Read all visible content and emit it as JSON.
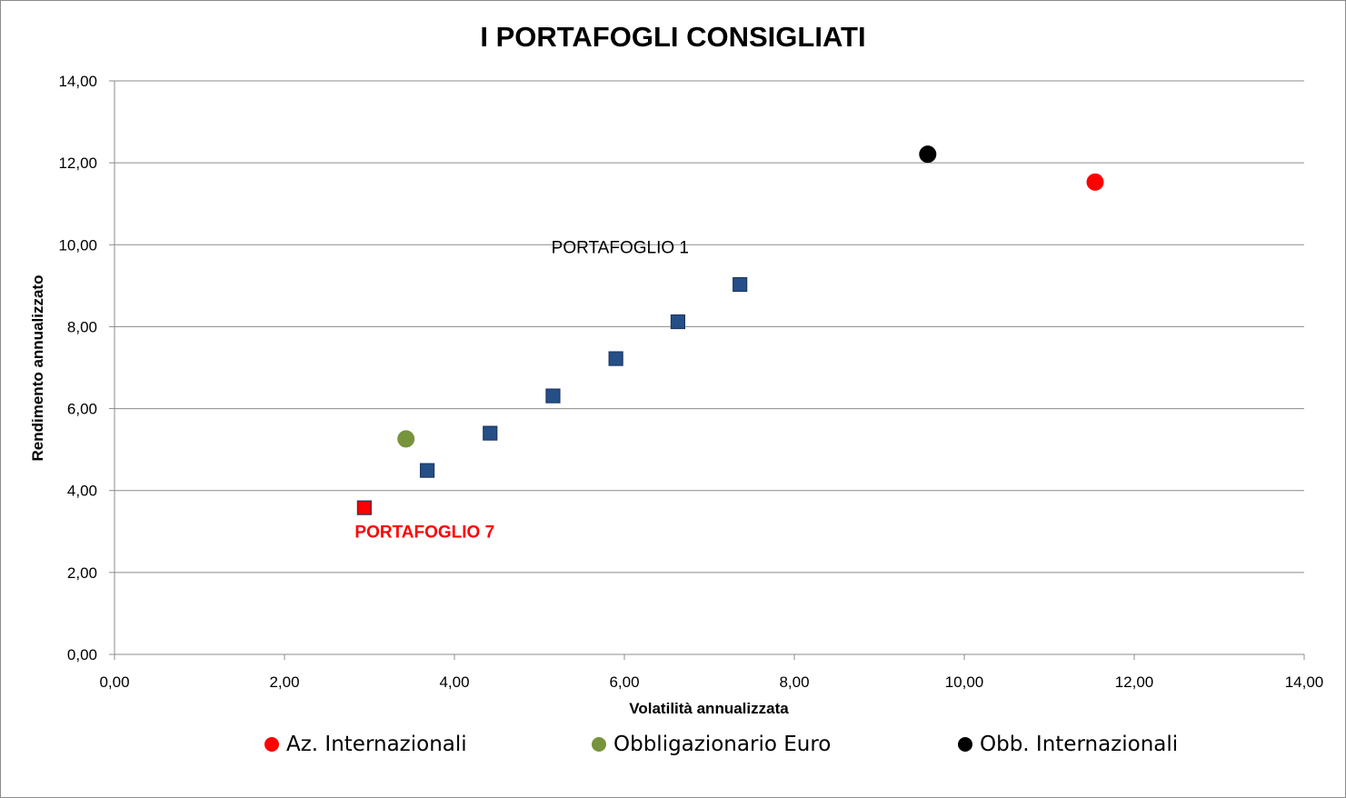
{
  "chart_data": {
    "type": "scatter",
    "title": "I PORTAFOGLI CONSIGLIATI",
    "xlabel": "Volatilità annualizzata",
    "ylabel": "Rendimento annualizzato",
    "xlim": [
      0,
      14
    ],
    "ylim": [
      0,
      14
    ],
    "xticks": [
      0,
      2,
      4,
      6,
      8,
      10,
      12,
      14
    ],
    "yticks": [
      0,
      2,
      4,
      6,
      8,
      10,
      12,
      14
    ],
    "xtick_labels": [
      "0,00",
      "2,00",
      "4,00",
      "6,00",
      "8,00",
      "10,00",
      "12,00",
      "14,00"
    ],
    "ytick_labels": [
      "0,00",
      "2,00",
      "4,00",
      "6,00",
      "8,00",
      "10,00",
      "12,00",
      "14,00"
    ],
    "grid": "horizontal",
    "legend_position": "bottom",
    "series": [
      {
        "name": "Az. Internazionali",
        "marker": "circle",
        "color": "#ff0000",
        "points": [
          {
            "x": 11.54,
            "y": 11.53
          }
        ]
      },
      {
        "name": "Obbligazionario Euro",
        "marker": "circle",
        "color": "#77933c",
        "points": [
          {
            "x": 3.43,
            "y": 5.26
          }
        ]
      },
      {
        "name": "Obb. Internazionali",
        "marker": "circle",
        "color": "#000000",
        "points": [
          {
            "x": 9.57,
            "y": 12.21
          }
        ]
      }
    ],
    "portfolios": {
      "marker": "square",
      "color": "#254f87",
      "points": [
        {
          "x": 7.36,
          "y": 9.03
        },
        {
          "x": 6.63,
          "y": 8.12
        },
        {
          "x": 5.9,
          "y": 7.22
        },
        {
          "x": 5.16,
          "y": 6.31
        },
        {
          "x": 4.42,
          "y": 5.4
        },
        {
          "x": 3.68,
          "y": 4.49
        },
        {
          "x": 2.94,
          "y": 3.58,
          "highlight_color": "#ff0000"
        }
      ]
    },
    "annotations": [
      {
        "text": "PORTAFOGLIO 1",
        "x": 5.95,
        "y": 9.8,
        "color": "#000000",
        "bold": false
      },
      {
        "text": "PORTAFOGLIO 7",
        "x": 3.65,
        "y": 2.85,
        "color": "#ff0000",
        "bold": true
      }
    ]
  }
}
